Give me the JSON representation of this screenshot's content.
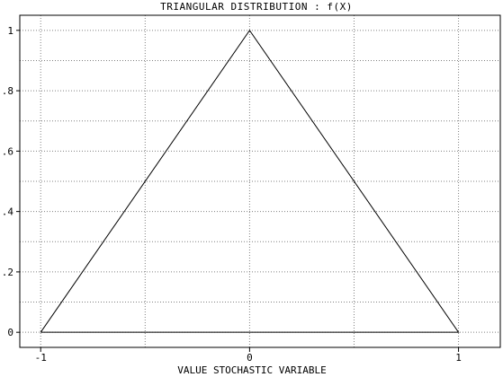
{
  "chart_data": {
    "type": "line",
    "title": "TRIANGULAR DISTRIBUTION : f(X)",
    "xlabel": "VALUE STOCHASTIC VARIABLE",
    "ylabel": "",
    "xlim": [
      -1.1,
      1.2
    ],
    "ylim": [
      -0.05,
      1.05
    ],
    "x_ticks": [
      -1,
      0,
      1
    ],
    "x_tick_labels": [
      "-1",
      "0",
      "1"
    ],
    "x_grid": [
      -1,
      -0.5,
      0,
      0.5,
      1
    ],
    "y_ticks": [
      0,
      0.2,
      0.4,
      0.6,
      0.8,
      1
    ],
    "y_tick_labels": [
      "0",
      ".2",
      ".4",
      ".6",
      ".8",
      "1"
    ],
    "y_grid": [
      0,
      0.1,
      0.2,
      0.3,
      0.4,
      0.5,
      0.6,
      0.7,
      0.8,
      0.9,
      1
    ],
    "grid": true,
    "series": [
      {
        "x": [
          -1,
          0,
          1,
          -1
        ],
        "y": [
          0,
          1,
          0,
          0
        ]
      }
    ]
  }
}
